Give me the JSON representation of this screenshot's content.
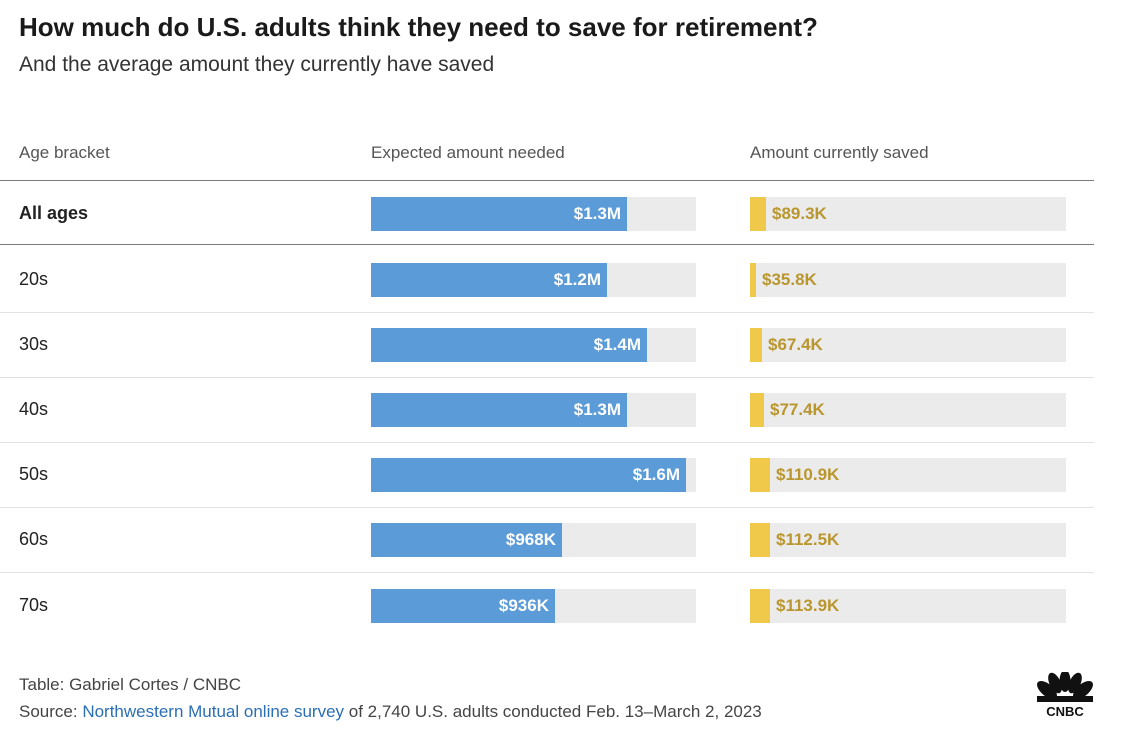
{
  "title": "How much do U.S. adults think they need to save for retirement?",
  "subtitle": "And the average amount they currently have saved",
  "headers": {
    "age": "Age bracket",
    "needed": "Expected amount needed",
    "saved": "Amount currently saved"
  },
  "colors": {
    "needed_bar": "#5b9bd8",
    "saved_bar": "#f0c94a",
    "track": "#ebebeb"
  },
  "chart_data": {
    "type": "table",
    "columns": [
      "Age bracket",
      "Expected amount needed",
      "Amount currently saved"
    ],
    "scale_max": 1650000,
    "rows": [
      {
        "label": "All ages",
        "needed": 1300000,
        "needed_label": "$1.3M",
        "saved": 89300,
        "saved_label": "$89.3K"
      },
      {
        "label": "20s",
        "needed": 1200000,
        "needed_label": "$1.2M",
        "saved": 35800,
        "saved_label": "$35.8K"
      },
      {
        "label": "30s",
        "needed": 1400000,
        "needed_label": "$1.4M",
        "saved": 67400,
        "saved_label": "$67.4K"
      },
      {
        "label": "40s",
        "needed": 1300000,
        "needed_label": "$1.3M",
        "saved": 77400,
        "saved_label": "$77.4K"
      },
      {
        "label": "50s",
        "needed": 1600000,
        "needed_label": "$1.6M",
        "saved": 110900,
        "saved_label": "$110.9K"
      },
      {
        "label": "60s",
        "needed": 968000,
        "needed_label": "$968K",
        "saved": 112500,
        "saved_label": "$112.5K"
      },
      {
        "label": "70s",
        "needed": 936000,
        "needed_label": "$936K",
        "saved": 113900,
        "saved_label": "$113.9K"
      }
    ]
  },
  "footer": {
    "credit": "Table: Gabriel Cortes / CNBC",
    "source_prefix": "Source: ",
    "source_link": "Northwestern Mutual online survey",
    "source_suffix": " of 2,740 U.S. adults conducted Feb. 13–March 2, 2023"
  },
  "logo": {
    "icon": "cnbc-peacock-icon",
    "text": "CNBC"
  }
}
